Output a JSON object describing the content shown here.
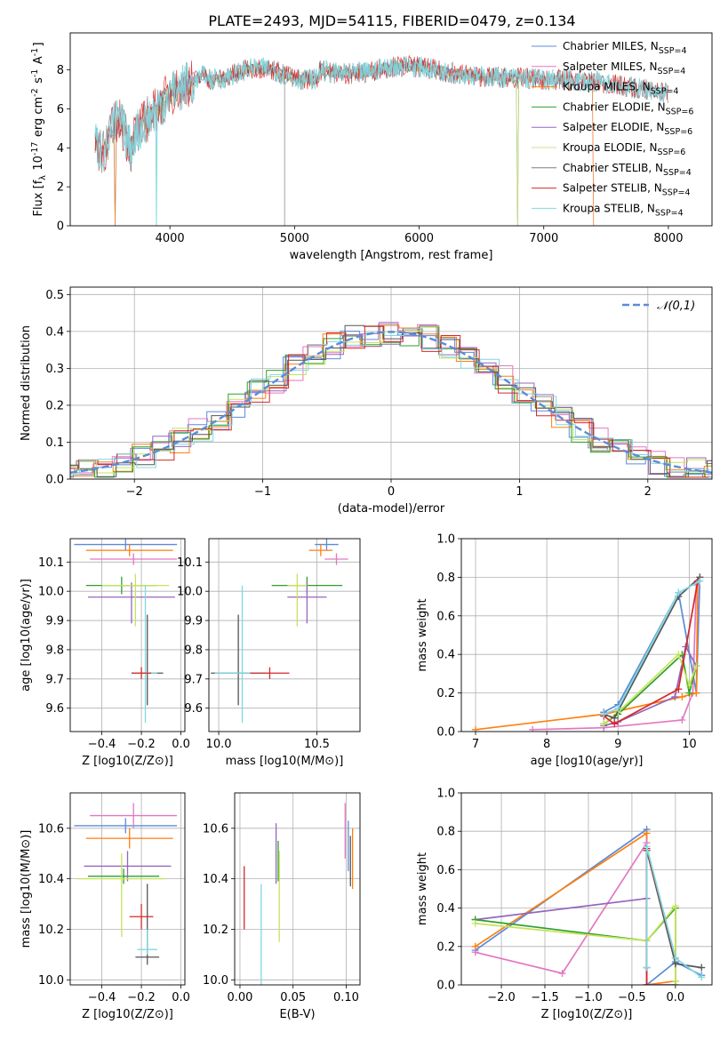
{
  "figure": {
    "title": "PLATE=2493, MJD=54115, FIBERID=0479, z=0.134"
  },
  "chart_data": [
    {
      "id": "spectrum",
      "type": "line",
      "title": "PLATE=2493, MJD=54115, FIBERID=0479, z=0.134",
      "xlabel": "wavelength [Angstrom, rest frame]",
      "ylabel": "Flux [f_λ 10^-17 erg cm^-2 s^-1 A^-1]",
      "xlim": [
        3200,
        8350
      ],
      "ylim": [
        0,
        9.9
      ],
      "xticks": [
        4000,
        5000,
        6000,
        7000,
        8000
      ],
      "yticks": [
        0,
        2,
        4,
        6,
        8
      ],
      "grid": false,
      "legend_position": "top-right",
      "series": [
        {
          "name": "Chabrier MILES, N_SSP=4",
          "color": "#5b8bd9",
          "x_range": [
            3400,
            7400
          ]
        },
        {
          "name": "Salpeter MILES, N_SSP=4",
          "color": "#e377c2",
          "x_range": [
            3400,
            7400
          ]
        },
        {
          "name": "Kroupa MILES, N_SSP=4",
          "color": "#ff7f0e",
          "x_range": [
            3400,
            7400
          ]
        },
        {
          "name": "Chabrier ELODIE, N_SSP=6",
          "color": "#2ca02c",
          "x_range": [
            3900,
            6800
          ]
        },
        {
          "name": "Salpeter ELODIE, N_SSP=6",
          "color": "#9467bd",
          "x_range": [
            3900,
            6800
          ]
        },
        {
          "name": "Kroupa ELODIE, N_SSP=6",
          "color": "#dbdb8d",
          "x_range": [
            3900,
            6800
          ]
        },
        {
          "name": "Chabrier STELIB, N_SSP=4",
          "color": "#7f7f7f",
          "x_range": [
            3400,
            8000
          ]
        },
        {
          "name": "Salpeter STELIB, N_SSP=4",
          "color": "#d62728",
          "x_range": [
            3400,
            8000
          ]
        },
        {
          "name": "Kroupa STELIB, N_SSP=4",
          "color": "#80d8e0",
          "x_range": [
            3400,
            8000
          ]
        }
      ]
    },
    {
      "id": "residuals",
      "type": "line",
      "xlabel": "(data-model)/error",
      "ylabel": "Normed distribution",
      "xlim": [
        -2.5,
        2.5
      ],
      "ylim": [
        0,
        0.52
      ],
      "xticks": [
        -2,
        -1,
        0,
        1,
        2
      ],
      "yticks": [
        0.0,
        0.1,
        0.2,
        0.3,
        0.4,
        0.5
      ],
      "grid": true,
      "legend_position": "top-right",
      "reference": {
        "name": "𝒩(0,1)",
        "color": "#5b8bd9",
        "style": "dashed"
      },
      "histograms": 9
    },
    {
      "id": "age-vs-metallicity",
      "type": "scatter",
      "xlabel": "Z [log10(Z/Z⊙)]",
      "ylabel": "age  [log10(age/yr)]",
      "xlim": [
        -0.56,
        0.02
      ],
      "ylim": [
        9.52,
        10.18
      ],
      "xticks": [
        -0.4,
        -0.2,
        0.0
      ],
      "yticks": [
        9.6,
        9.7,
        9.8,
        9.9,
        10.0,
        10.1
      ],
      "grid": true,
      "points": [
        {
          "x": -0.3,
          "y": 10.02,
          "xerr": 0.18,
          "yerr": [
            0.03,
            0.03
          ],
          "color": "#2ca02c"
        },
        {
          "x": -0.28,
          "y": 10.16,
          "xerr": 0.26,
          "yerr": [
            0.02,
            0.02
          ],
          "color": "#5b8bd9"
        },
        {
          "x": -0.26,
          "y": 10.14,
          "xerr": 0.22,
          "yerr": [
            0.02,
            0.02
          ],
          "color": "#ff7f0e"
        },
        {
          "x": -0.24,
          "y": 10.11,
          "xerr": 0.22,
          "yerr": [
            0.02,
            0.02
          ],
          "color": "#e377c2"
        },
        {
          "x": -0.25,
          "y": 9.98,
          "xerr": 0.22,
          "yerr": [
            0.09,
            0.05
          ],
          "color": "#9467bd"
        },
        {
          "x": -0.23,
          "y": 10.02,
          "xerr": 0.17,
          "yerr": [
            0.14,
            0.04
          ],
          "color": "#c5e35a"
        },
        {
          "x": -0.17,
          "y": 9.72,
          "xerr": 0.08,
          "yerr": [
            0.11,
            0.2
          ],
          "color": "#555555"
        },
        {
          "x": -0.18,
          "y": 9.72,
          "xerr": 0.06,
          "yerr": [
            0.17,
            0.3
          ],
          "color": "#80d8e0"
        },
        {
          "x": -0.2,
          "y": 9.72,
          "xerr": 0.05,
          "yerr": [
            0.02,
            0.02
          ],
          "color": "#d62728"
        }
      ]
    },
    {
      "id": "age-vs-mass",
      "type": "scatter",
      "xlabel": "mass [log10(M/M⊙)]",
      "xlim": [
        9.95,
        10.72
      ],
      "ylim": [
        9.52,
        10.18
      ],
      "xticks": [
        10.0,
        10.5
      ],
      "yticks": [
        9.6,
        9.7,
        9.8,
        9.9,
        10.0,
        10.1
      ],
      "grid": true,
      "points": [
        {
          "x": 10.45,
          "y": 10.02,
          "xerr": 0.18,
          "yerr": [
            0.03,
            0.03
          ],
          "color": "#2ca02c"
        },
        {
          "x": 10.55,
          "y": 10.16,
          "xerr": 0.06,
          "yerr": [
            0.02,
            0.02
          ],
          "color": "#5b8bd9"
        },
        {
          "x": 10.52,
          "y": 10.14,
          "xerr": 0.06,
          "yerr": [
            0.02,
            0.02
          ],
          "color": "#ff7f0e"
        },
        {
          "x": 10.6,
          "y": 10.11,
          "xerr": 0.06,
          "yerr": [
            0.02,
            0.02
          ],
          "color": "#e377c2"
        },
        {
          "x": 10.45,
          "y": 9.98,
          "xerr": 0.1,
          "yerr": [
            0.09,
            0.05
          ],
          "color": "#9467bd"
        },
        {
          "x": 10.4,
          "y": 10.02,
          "xerr": 0.05,
          "yerr": [
            0.14,
            0.04
          ],
          "color": "#c5e35a"
        },
        {
          "x": 10.1,
          "y": 9.72,
          "xerr": 0.14,
          "yerr": [
            0.11,
            0.2
          ],
          "color": "#555555"
        },
        {
          "x": 10.12,
          "y": 9.72,
          "xerr": 0.14,
          "yerr": [
            0.17,
            0.3
          ],
          "color": "#80d8e0"
        },
        {
          "x": 10.26,
          "y": 9.72,
          "xerr": 0.1,
          "yerr": [
            0.02,
            0.02
          ],
          "color": "#d62728"
        }
      ]
    },
    {
      "id": "massweight-vs-age",
      "type": "line",
      "xlabel": "age  [log10(age/yr)]",
      "ylabel": "mass weight",
      "xlim": [
        6.8,
        10.32
      ],
      "ylim": [
        0.0,
        1.0
      ],
      "xticks": [
        7,
        8,
        9,
        10
      ],
      "yticks": [
        0.0,
        0.2,
        0.4,
        0.6,
        0.8,
        1.0
      ],
      "grid": true,
      "series": [
        {
          "color": "#5b8bd9",
          "x": [
            8.8,
            9.0,
            9.85,
            10.1,
            10.15
          ],
          "y": [
            0.1,
            0.14,
            0.72,
            0.2,
            0.8
          ]
        },
        {
          "color": "#e377c2",
          "x": [
            7.8,
            8.8,
            9.9,
            10.05,
            10.1
          ],
          "y": [
            0.01,
            0.02,
            0.06,
            0.2,
            0.76
          ]
        },
        {
          "color": "#ff7f0e",
          "x": [
            7.0,
            8.8,
            9.9,
            10.1,
            10.12
          ],
          "y": [
            0.01,
            0.09,
            0.18,
            0.2,
            0.78
          ]
        },
        {
          "color": "#2ca02c",
          "x": [
            8.8,
            9.0,
            9.9,
            10.0,
            10.1
          ],
          "y": [
            0.04,
            0.09,
            0.4,
            0.2,
            0.34
          ]
        },
        {
          "color": "#9467bd",
          "x": [
            8.8,
            9.0,
            9.8,
            9.95,
            10.1
          ],
          "y": [
            0.03,
            0.05,
            0.18,
            0.44,
            0.34
          ]
        },
        {
          "color": "#c5e35a",
          "x": [
            8.8,
            9.0,
            9.85,
            10.0,
            10.1
          ],
          "y": [
            0.04,
            0.1,
            0.4,
            0.24,
            0.34
          ]
        },
        {
          "color": "#555555",
          "x": [
            8.8,
            8.95,
            9.85,
            10.15
          ],
          "y": [
            0.09,
            0.07,
            0.7,
            0.8
          ]
        },
        {
          "color": "#d62728",
          "x": [
            8.8,
            8.95,
            9.85,
            10.12
          ],
          "y": [
            0.08,
            0.04,
            0.22,
            0.78
          ]
        },
        {
          "color": "#80d8e0",
          "x": [
            8.8,
            9.0,
            9.85,
            10.15
          ],
          "y": [
            0.09,
            0.12,
            0.72,
            0.78
          ]
        }
      ]
    },
    {
      "id": "mass-vs-metallicity",
      "type": "scatter",
      "xlabel": "Z [log10(Z/Z⊙)]",
      "ylabel": "mass [log10(M/M⊙)]",
      "xlim": [
        -0.56,
        0.02
      ],
      "ylim": [
        9.98,
        10.74
      ],
      "xticks": [
        -0.4,
        -0.2,
        0.0
      ],
      "yticks": [
        10.0,
        10.2,
        10.4,
        10.6
      ],
      "grid": true,
      "points": [
        {
          "x": -0.28,
          "y": 10.61,
          "xerr": 0.26,
          "yerr": [
            0.03,
            0.03
          ],
          "color": "#5b8bd9"
        },
        {
          "x": -0.26,
          "y": 10.56,
          "xerr": 0.22,
          "yerr": [
            0.04,
            0.04
          ],
          "color": "#ff7f0e"
        },
        {
          "x": -0.24,
          "y": 10.65,
          "xerr": 0.22,
          "yerr": [
            0.05,
            0.05
          ],
          "color": "#e377c2"
        },
        {
          "x": -0.29,
          "y": 10.41,
          "xerr": 0.18,
          "yerr": [
            0.03,
            0.03
          ],
          "color": "#2ca02c"
        },
        {
          "x": -0.27,
          "y": 10.45,
          "xerr": 0.22,
          "yerr": [
            0.06,
            0.06
          ],
          "color": "#9467bd"
        },
        {
          "x": -0.3,
          "y": 10.4,
          "xerr": 0.22,
          "yerr": [
            0.23,
            0.1
          ],
          "color": "#c5e35a"
        },
        {
          "x": -0.17,
          "y": 10.09,
          "xerr": 0.06,
          "yerr": [
            0.03,
            0.29
          ],
          "color": "#555555"
        },
        {
          "x": -0.17,
          "y": 10.12,
          "xerr": 0.05,
          "yerr": [
            0.02,
            0.08
          ],
          "color": "#80d8e0"
        },
        {
          "x": -0.2,
          "y": 10.25,
          "xerr": 0.06,
          "yerr": [
            0.05,
            0.05
          ],
          "color": "#d62728"
        }
      ]
    },
    {
      "id": "mass-vs-ebv",
      "type": "scatter",
      "xlabel": "E(B-V)",
      "xlim": [
        -0.005,
        0.113
      ],
      "ylim": [
        9.98,
        10.74
      ],
      "xticks": [
        0.0,
        0.05,
        0.1
      ],
      "xtick_labels": [
        "0.00",
        "0.05",
        "0.10"
      ],
      "yticks": [
        10.0,
        10.2,
        10.4,
        10.6
      ],
      "grid": true,
      "points": [
        {
          "x": 0.004,
          "y": 10.33,
          "yerr": [
            0.13,
            0.12
          ],
          "color": "#d62728"
        },
        {
          "x": 0.02,
          "y": 10.2,
          "yerr": [
            0.22,
            0.18
          ],
          "color": "#80d8e0"
        },
        {
          "x": 0.034,
          "y": 10.5,
          "yerr": [
            0.12,
            0.12
          ],
          "color": "#9467bd"
        },
        {
          "x": 0.036,
          "y": 10.47,
          "yerr": [
            0.08,
            0.08
          ],
          "color": "#2ca02c"
        },
        {
          "x": 0.037,
          "y": 10.33,
          "yerr": [
            0.18,
            0.18
          ],
          "color": "#c5e35a"
        },
        {
          "x": 0.099,
          "y": 10.58,
          "yerr": [
            0.1,
            0.12
          ],
          "color": "#e377c2"
        },
        {
          "x": 0.102,
          "y": 10.53,
          "yerr": [
            0.1,
            0.1
          ],
          "color": "#5b8bd9"
        },
        {
          "x": 0.104,
          "y": 10.47,
          "yerr": [
            0.1,
            0.1
          ],
          "color": "#555555"
        },
        {
          "x": 0.106,
          "y": 10.48,
          "yerr": [
            0.12,
            0.12
          ],
          "color": "#ff7f0e"
        }
      ]
    },
    {
      "id": "massweight-vs-metallicity",
      "type": "line",
      "xlabel": "Z [log10(Z/Z⊙)]",
      "ylabel": "mass weight",
      "xlim": [
        -2.46,
        0.42
      ],
      "ylim": [
        0.0,
        1.0
      ],
      "xticks": [
        -2.0,
        -1.5,
        -1.0,
        -0.5,
        0.0
      ],
      "yticks": [
        0.0,
        0.2,
        0.4,
        0.6,
        0.8,
        1.0
      ],
      "grid": true,
      "series": [
        {
          "color": "#5b8bd9",
          "x": [
            -2.3,
            -0.33,
            -0.33,
            0.0,
            0.3
          ],
          "y": [
            0.18,
            0.81,
            0.0,
            0.12,
            0.05
          ]
        },
        {
          "color": "#ff7f0e",
          "x": [
            -2.3,
            -0.33,
            -0.33,
            0.0
          ],
          "y": [
            0.2,
            0.79,
            0.0,
            0.02
          ]
        },
        {
          "color": "#e377c2",
          "x": [
            -2.3,
            -1.3,
            -0.33,
            -0.33
          ],
          "y": [
            0.17,
            0.06,
            0.74,
            0.0
          ]
        },
        {
          "color": "#9467bd",
          "x": [
            -2.3,
            -0.33,
            -0.33,
            0.0
          ],
          "y": [
            0.34,
            0.45,
            0.0,
            0.0
          ]
        },
        {
          "color": "#2ca02c",
          "x": [
            -2.3,
            -0.33,
            0.0,
            0.0
          ],
          "y": [
            0.34,
            0.23,
            0.4,
            0.0
          ]
        },
        {
          "color": "#c5e35a",
          "x": [
            -2.3,
            -0.33,
            0.0,
            0.0
          ],
          "y": [
            0.32,
            0.23,
            0.41,
            0.02
          ]
        },
        {
          "color": "#555555",
          "x": [
            -0.33,
            -0.33,
            0.0,
            0.3
          ],
          "y": [
            0.09,
            0.7,
            0.11,
            0.09
          ]
        },
        {
          "color": "#d62728",
          "x": [
            -0.33,
            -0.33,
            0.0
          ],
          "y": [
            0.0,
            0.71,
            0.14
          ]
        },
        {
          "color": "#80d8e0",
          "x": [
            -0.33,
            -0.33,
            0.0,
            0.3
          ],
          "y": [
            0.09,
            0.72,
            0.14,
            0.04
          ]
        }
      ]
    }
  ]
}
